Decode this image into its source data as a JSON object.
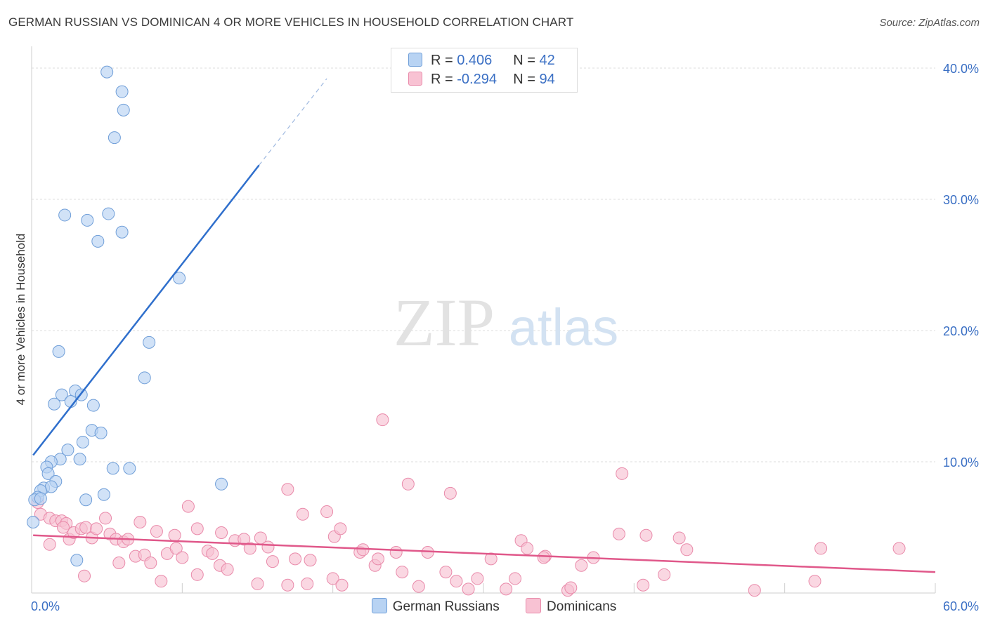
{
  "title": "GERMAN RUSSIAN VS DOMINICAN 4 OR MORE VEHICLES IN HOUSEHOLD CORRELATION CHART",
  "source": "Source: ZipAtlas.com",
  "watermark": {
    "zip": "ZIP",
    "atlas": "atlas"
  },
  "colors": {
    "blue_fill": "#b8d3f3",
    "blue_stroke": "#6f9ed8",
    "blue_line": "#2f6fcc",
    "pink_fill": "#f8c2d3",
    "pink_stroke": "#e98aaa",
    "pink_line": "#e0588a",
    "axis_text": "#3a6fc4",
    "grid": "#dddddd"
  },
  "legend_top": {
    "rows": [
      {
        "r_label": "R = ",
        "r_value": "0.406",
        "n_label": "N = ",
        "n_value": "42"
      },
      {
        "r_label": "R = ",
        "r_value": "-0.294",
        "n_label": "N = ",
        "n_value": "94"
      }
    ]
  },
  "chart_data": {
    "type": "scatter",
    "xlabel": "",
    "ylabel": "4 or more Vehicles in Household",
    "xlim": [
      0,
      60
    ],
    "ylim": [
      0,
      40
    ],
    "x_tick_labels": [
      "0.0%",
      "60.0%"
    ],
    "y_ticks": [
      10,
      20,
      30,
      40
    ],
    "y_tick_labels": [
      "10.0%",
      "20.0%",
      "30.0%",
      "40.0%"
    ],
    "grid": true,
    "legend": "bottom",
    "series": [
      {
        "name": "German Russians",
        "color_key": "blue",
        "r": 0.406,
        "n": 42,
        "trend": {
          "x1": 0.1,
          "y1": 10.5,
          "x2": 15.1,
          "y2": 32.6,
          "dash_to_x": 19.6,
          "dash_to_y": 39.2
        },
        "points": [
          [
            5.0,
            39.7
          ],
          [
            6.0,
            38.2
          ],
          [
            6.1,
            36.8
          ],
          [
            5.5,
            34.7
          ],
          [
            2.2,
            28.8
          ],
          [
            3.7,
            28.4
          ],
          [
            5.1,
            28.9
          ],
          [
            6.0,
            27.5
          ],
          [
            4.4,
            26.8
          ],
          [
            9.8,
            24.0
          ],
          [
            1.8,
            18.4
          ],
          [
            7.8,
            19.1
          ],
          [
            7.5,
            16.4
          ],
          [
            2.0,
            15.1
          ],
          [
            2.9,
            15.4
          ],
          [
            3.3,
            15.1
          ],
          [
            1.5,
            14.4
          ],
          [
            2.6,
            14.6
          ],
          [
            4.1,
            14.3
          ],
          [
            4.0,
            12.4
          ],
          [
            4.6,
            12.2
          ],
          [
            3.4,
            11.5
          ],
          [
            2.4,
            10.9
          ],
          [
            1.9,
            10.2
          ],
          [
            3.2,
            10.2
          ],
          [
            1.3,
            10.0
          ],
          [
            1.0,
            9.6
          ],
          [
            1.1,
            9.1
          ],
          [
            5.4,
            9.5
          ],
          [
            6.5,
            9.5
          ],
          [
            1.6,
            8.5
          ],
          [
            0.8,
            8.0
          ],
          [
            1.3,
            8.1
          ],
          [
            0.6,
            7.8
          ],
          [
            12.6,
            8.3
          ],
          [
            4.8,
            7.5
          ],
          [
            3.6,
            7.1
          ],
          [
            0.4,
            7.3
          ],
          [
            0.2,
            7.1
          ],
          [
            0.1,
            5.4
          ],
          [
            3.0,
            2.5
          ],
          [
            0.6,
            7.2
          ]
        ]
      },
      {
        "name": "Dominicans",
        "color_key": "pink",
        "r": -0.294,
        "n": 94,
        "trend": {
          "x1": 0.1,
          "y1": 4.4,
          "x2": 60.0,
          "y2": 1.6
        },
        "points": [
          [
            0.4,
            6.9
          ],
          [
            0.6,
            6.0
          ],
          [
            1.2,
            5.7
          ],
          [
            1.6,
            5.5
          ],
          [
            2.0,
            5.5
          ],
          [
            2.3,
            5.3
          ],
          [
            2.1,
            5.0
          ],
          [
            2.5,
            4.1
          ],
          [
            2.8,
            4.6
          ],
          [
            3.3,
            4.9
          ],
          [
            3.6,
            5.0
          ],
          [
            4.0,
            4.2
          ],
          [
            4.3,
            4.9
          ],
          [
            4.9,
            5.7
          ],
          [
            5.2,
            4.5
          ],
          [
            5.6,
            4.1
          ],
          [
            6.1,
            3.9
          ],
          [
            6.4,
            4.1
          ],
          [
            7.2,
            5.4
          ],
          [
            8.3,
            4.7
          ],
          [
            9.5,
            4.4
          ],
          [
            10.4,
            6.6
          ],
          [
            11.0,
            4.9
          ],
          [
            12.6,
            4.6
          ],
          [
            13.5,
            4.0
          ],
          [
            14.1,
            4.1
          ],
          [
            15.2,
            4.2
          ],
          [
            15.7,
            3.5
          ],
          [
            17.0,
            7.9
          ],
          [
            18.0,
            6.0
          ],
          [
            18.5,
            2.5
          ],
          [
            19.6,
            6.2
          ],
          [
            20.1,
            4.3
          ],
          [
            20.5,
            4.9
          ],
          [
            21.8,
            3.1
          ],
          [
            22.8,
            2.1
          ],
          [
            23.0,
            2.6
          ],
          [
            24.2,
            3.1
          ],
          [
            22.0,
            3.3
          ],
          [
            14.5,
            3.4
          ],
          [
            15.0,
            0.7
          ],
          [
            17.0,
            0.6
          ],
          [
            18.3,
            0.7
          ],
          [
            20.0,
            1.1
          ],
          [
            20.6,
            0.6
          ],
          [
            23.3,
            13.2
          ],
          [
            24.6,
            1.6
          ],
          [
            25.0,
            8.3
          ],
          [
            25.7,
            0.5
          ],
          [
            26.3,
            3.1
          ],
          [
            27.5,
            1.6
          ],
          [
            28.2,
            0.9
          ],
          [
            27.8,
            7.6
          ],
          [
            29.0,
            0.3
          ],
          [
            29.6,
            1.1
          ],
          [
            30.5,
            2.6
          ],
          [
            31.5,
            0.3
          ],
          [
            32.5,
            4.0
          ],
          [
            32.9,
            3.4
          ],
          [
            32.1,
            1.1
          ],
          [
            34.1,
            2.8
          ],
          [
            34.0,
            2.7
          ],
          [
            35.6,
            0.2
          ],
          [
            35.8,
            0.4
          ],
          [
            36.5,
            2.1
          ],
          [
            37.3,
            2.7
          ],
          [
            39.0,
            4.5
          ],
          [
            39.2,
            9.1
          ],
          [
            40.8,
            4.4
          ],
          [
            40.6,
            0.6
          ],
          [
            42.0,
            1.4
          ],
          [
            43.0,
            4.2
          ],
          [
            43.5,
            3.3
          ],
          [
            48.0,
            0.2
          ],
          [
            52.0,
            0.9
          ],
          [
            52.4,
            3.4
          ],
          [
            57.6,
            3.4
          ],
          [
            1.2,
            3.7
          ],
          [
            3.5,
            1.3
          ],
          [
            5.8,
            2.3
          ],
          [
            6.9,
            2.8
          ],
          [
            7.5,
            2.9
          ],
          [
            7.9,
            2.3
          ],
          [
            8.6,
            0.9
          ],
          [
            9.0,
            3.0
          ],
          [
            9.6,
            3.4
          ],
          [
            10.0,
            2.7
          ],
          [
            11.0,
            1.4
          ],
          [
            11.7,
            3.2
          ],
          [
            12.0,
            3.0
          ],
          [
            12.5,
            2.1
          ],
          [
            13.0,
            1.8
          ],
          [
            16.0,
            2.4
          ],
          [
            17.5,
            2.6
          ]
        ]
      }
    ]
  }
}
